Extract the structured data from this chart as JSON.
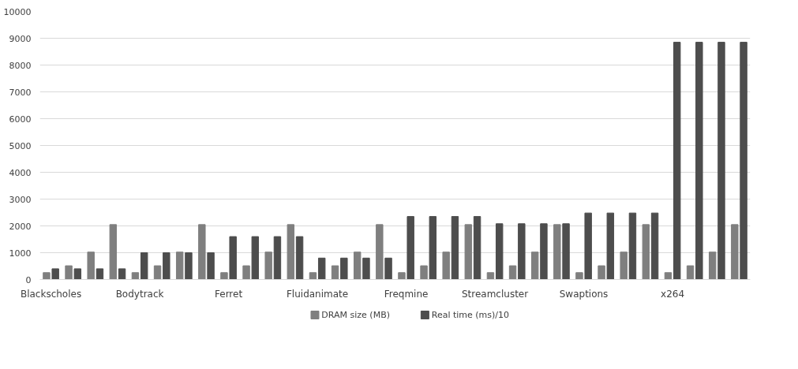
{
  "chart_data": {
    "type": "bar",
    "categories": [
      "Blackscholes",
      null,
      null,
      null,
      "Bodytrack",
      null,
      null,
      null,
      "Ferret",
      null,
      null,
      null,
      "Fluidanimate",
      null,
      null,
      null,
      "Freqmine",
      null,
      null,
      null,
      "Streamcluster",
      null,
      null,
      null,
      "Swaptions",
      null,
      null,
      null,
      "x264",
      null,
      null,
      null
    ],
    "series": [
      {
        "name": "DRAM size (MB)",
        "color": "#7f7f7f",
        "values": [
          256,
          512,
          1024,
          2048,
          256,
          512,
          1024,
          2048,
          256,
          512,
          1024,
          2048,
          256,
          512,
          1024,
          2048,
          256,
          512,
          1024,
          2048,
          256,
          512,
          1024,
          2048,
          256,
          512,
          1024,
          2048,
          256,
          512,
          1024,
          2048
        ]
      },
      {
        "name": "Real time (ms)/10",
        "color": "#4d4d4d",
        "values": [
          400,
          400,
          400,
          400,
          1000,
          1000,
          1000,
          1000,
          1600,
          1600,
          1600,
          1600,
          800,
          800,
          800,
          800,
          2350,
          2350,
          2350,
          2350,
          2080,
          2080,
          2080,
          2080,
          2480,
          2480,
          2480,
          2480,
          8850,
          8850,
          8850,
          8850
        ]
      }
    ],
    "ylim": [
      0,
      10000
    ],
    "yticks": [
      0,
      1000,
      2000,
      3000,
      4000,
      5000,
      6000,
      7000,
      8000,
      9000,
      10000
    ],
    "grid": "y",
    "legend": "bottom"
  }
}
